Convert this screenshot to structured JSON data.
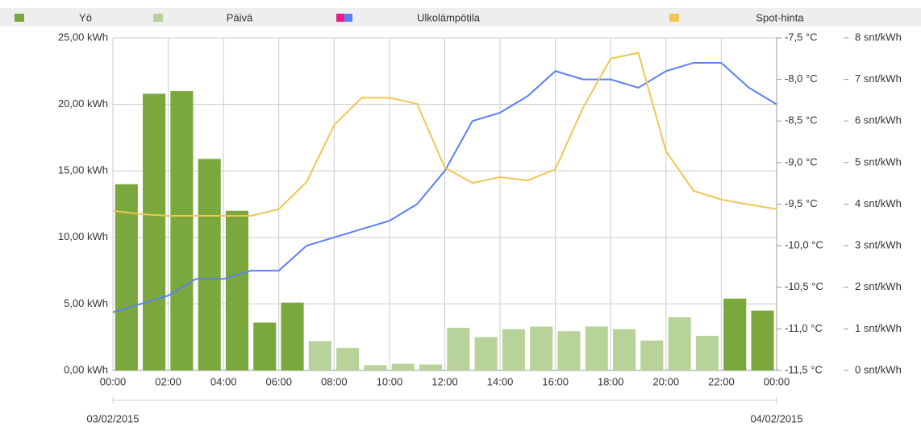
{
  "chart_data": {
    "type": "bar",
    "x": [
      0,
      1,
      2,
      3,
      4,
      5,
      6,
      7,
      8,
      9,
      10,
      11,
      12,
      13,
      14,
      15,
      16,
      17,
      18,
      19,
      20,
      21,
      22,
      23,
      24
    ],
    "xlim": [
      0,
      24
    ],
    "xticks": [
      {
        "value": 0,
        "label": "00:00"
      },
      {
        "value": 2,
        "label": "02:00"
      },
      {
        "value": 4,
        "label": "04:00"
      },
      {
        "value": 6,
        "label": "06:00"
      },
      {
        "value": 8,
        "label": "08:00"
      },
      {
        "value": 10,
        "label": "10:00"
      },
      {
        "value": 12,
        "label": "12:00"
      },
      {
        "value": 14,
        "label": "14:00"
      },
      {
        "value": 16,
        "label": "16:00"
      },
      {
        "value": 18,
        "label": "18:00"
      },
      {
        "value": 20,
        "label": "20:00"
      },
      {
        "value": 22,
        "label": "22:00"
      },
      {
        "value": 24,
        "label": "00:00"
      }
    ],
    "date_labels": [
      {
        "value": 0,
        "label": "03/02/2015"
      },
      {
        "value": 24,
        "label": "04/02/2015"
      }
    ],
    "ylim": [
      0,
      25
    ],
    "yticks": [
      {
        "value": 0,
        "label": "0,00 kWh"
      },
      {
        "value": 5,
        "label": "5,00 kWh"
      },
      {
        "value": 10,
        "label": "10,00 kWh"
      },
      {
        "value": 15,
        "label": "15,00 kWh"
      },
      {
        "value": 20,
        "label": "20,00 kWh"
      },
      {
        "value": 25,
        "label": "25,00 kWh"
      }
    ],
    "y2lim": [
      -11.5,
      -7.5
    ],
    "y2ticks": [
      {
        "value": -11.5,
        "label": "-11,5 °C"
      },
      {
        "value": -11,
        "label": "-11,0 °C"
      },
      {
        "value": -10.5,
        "label": "-10,5 °C"
      },
      {
        "value": -10,
        "label": "-10,0 °C"
      },
      {
        "value": -9.5,
        "label": "-9,5 °C"
      },
      {
        "value": -9,
        "label": "-9,0 °C"
      },
      {
        "value": -8.5,
        "label": "-8,5 °C"
      },
      {
        "value": -8,
        "label": "-8,0 °C"
      },
      {
        "value": -7.5,
        "label": "-7,5 °C"
      }
    ],
    "y3lim": [
      0,
      8
    ],
    "y3ticks": [
      {
        "value": 0,
        "label": "0 snt/kWh"
      },
      {
        "value": 1,
        "label": "1 snt/kWh"
      },
      {
        "value": 2,
        "label": "2 snt/kWh"
      },
      {
        "value": 3,
        "label": "3 snt/kWh"
      },
      {
        "value": 4,
        "label": "4 snt/kWh"
      },
      {
        "value": 5,
        "label": "5 snt/kWh"
      },
      {
        "value": 6,
        "label": "6 snt/kWh"
      },
      {
        "value": 7,
        "label": "7 snt/kWh"
      },
      {
        "value": 8,
        "label": "8 snt/kWh"
      }
    ],
    "grid": true,
    "series": [
      {
        "name": "Yö",
        "color": "#7aa83c",
        "type": "bar",
        "values": [
          14.0,
          20.8,
          21.0,
          15.9,
          12.0,
          3.6,
          5.1,
          null,
          null,
          null,
          null,
          null,
          null,
          null,
          null,
          null,
          null,
          null,
          null,
          null,
          null,
          null,
          5.4,
          4.5,
          null
        ]
      },
      {
        "name": "Päivä",
        "color": "#b8d39a",
        "type": "bar",
        "values": [
          null,
          null,
          null,
          null,
          null,
          null,
          null,
          2.2,
          1.7,
          0.4,
          0.5,
          0.45,
          3.2,
          2.5,
          3.1,
          3.3,
          2.95,
          3.3,
          3.1,
          2.25,
          4.0,
          2.6,
          null,
          null,
          null
        ]
      },
      {
        "name": "Ulkolämpötila",
        "color": "#5b7ff7",
        "type": "line",
        "axis": "y2",
        "values": [
          -10.8,
          -10.7,
          -10.6,
          -10.4,
          -10.4,
          -10.3,
          -10.3,
          -10.0,
          -9.9,
          -9.8,
          -9.7,
          -9.5,
          -9.1,
          -8.5,
          -8.4,
          -8.2,
          -7.9,
          -8.0,
          -8.0,
          -8.1,
          -7.9,
          -7.8,
          -7.8,
          -8.1,
          -8.3
        ]
      },
      {
        "name": "Spot-hinta",
        "color": "#f0c654",
        "type": "line",
        "axis": "y3",
        "values": [
          3.84,
          3.76,
          3.72,
          3.72,
          3.72,
          3.72,
          3.88,
          4.53,
          5.9,
          6.56,
          6.56,
          6.41,
          4.88,
          4.51,
          4.65,
          4.57,
          4.84,
          6.32,
          7.5,
          7.64,
          5.27,
          4.32,
          4.11,
          3.99,
          3.88
        ]
      }
    ]
  }
}
